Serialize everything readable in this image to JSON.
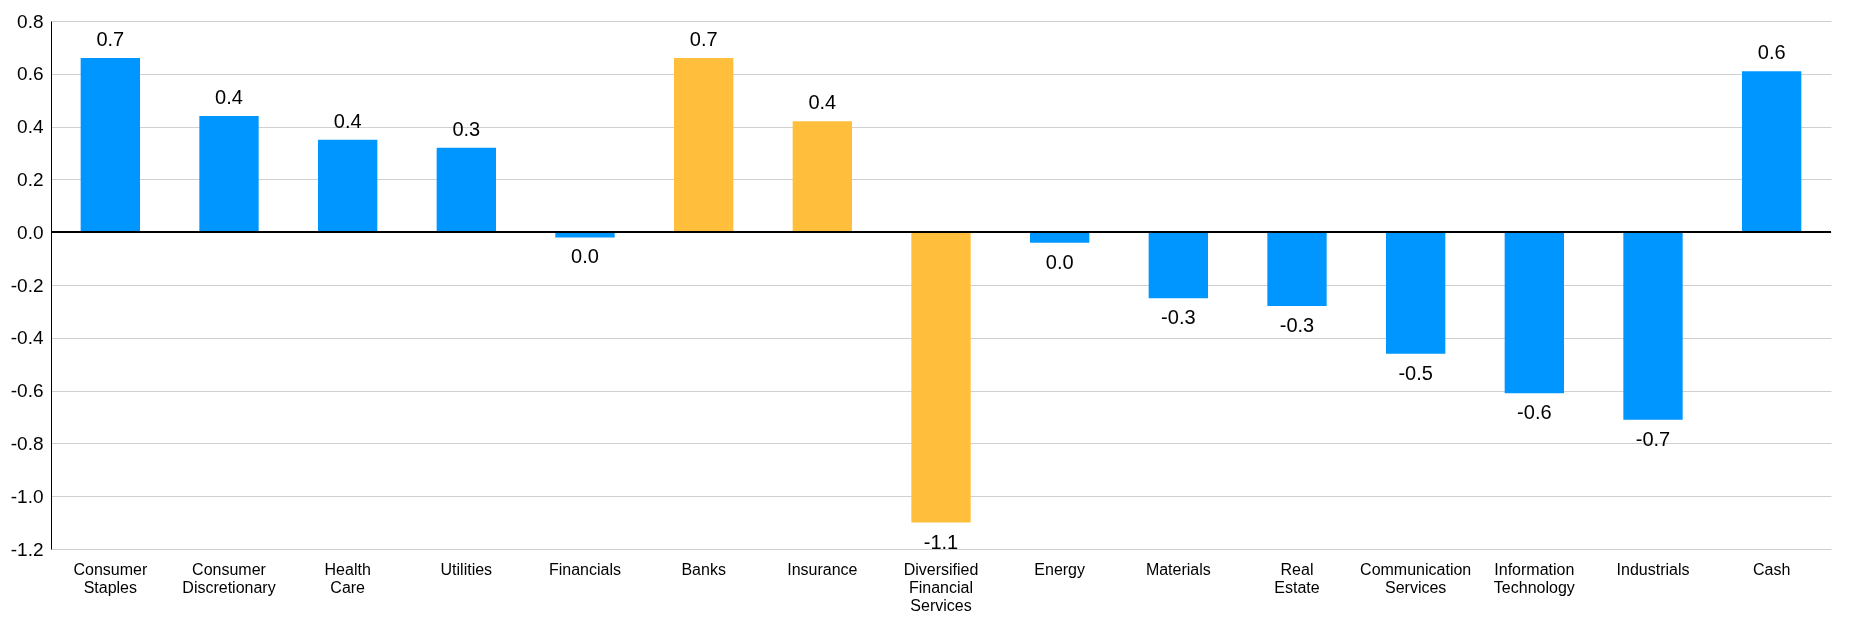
{
  "chart_data": {
    "type": "bar",
    "categories": [
      "Consumer Staples",
      "Consumer Discretionary",
      "Health Care",
      "Utilities",
      "Financials",
      "Banks",
      "Insurance",
      "Diversified Financial Services",
      "Energy",
      "Materials",
      "Real Estate",
      "Communication Services",
      "Information Technology",
      "Industrials",
      "Cash"
    ],
    "values": [
      0.66,
      0.44,
      0.35,
      0.32,
      -0.02,
      0.66,
      0.42,
      -1.1,
      -0.04,
      -0.25,
      -0.28,
      -0.46,
      -0.61,
      -0.71,
      0.61
    ],
    "value_labels": [
      "0.7",
      "0.4",
      "0.4",
      "0.3",
      "0.0",
      "0.7",
      "0.4",
      "-1.1",
      "0.0",
      "-0.3",
      "-0.3",
      "-0.5",
      "-0.6",
      "-0.7",
      "0.6"
    ],
    "colors": [
      "#0096ff",
      "#0096ff",
      "#0096ff",
      "#0096ff",
      "#0096ff",
      "#ffbf3c",
      "#ffbf3c",
      "#ffbf3c",
      "#0096ff",
      "#0096ff",
      "#0096ff",
      "#0096ff",
      "#0096ff",
      "#0096ff",
      "#0096ff"
    ],
    "ylim": [
      -1.2,
      0.8
    ],
    "yticks": [
      {
        "value": -1.2,
        "label": "-1.2"
      },
      {
        "value": -1,
        "label": "-1.0"
      },
      {
        "value": -0.8,
        "label": "-0.8"
      },
      {
        "value": -0.6,
        "label": "-0.6"
      },
      {
        "value": -0.4,
        "label": "-0.4"
      },
      {
        "value": -0.2,
        "label": "-0.2"
      },
      {
        "value": 0,
        "label": "0.0"
      },
      0.2,
      0.4,
      0.6,
      0.8
    ],
    "grid": "y"
  }
}
